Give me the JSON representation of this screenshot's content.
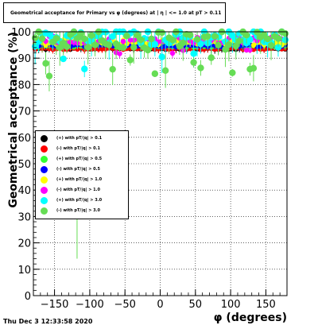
{
  "title": "Geometrical acceptance for Primary vs φ (degrees) at | η | <= 1.0 at pT > 0.11",
  "footer": "Thu Dec  3 12:33:58 2020",
  "chart_data": {
    "type": "scatter",
    "xlabel": "φ (degrees)",
    "ylabel": "Geometrical acceptance (%)",
    "xlim": [
      -180,
      180
    ],
    "ylim": [
      0,
      100
    ],
    "xticks": [
      -150,
      -100,
      -50,
      0,
      50,
      100,
      150
    ],
    "yticks": [
      0,
      10,
      20,
      30,
      40,
      50,
      60,
      70,
      80,
      90,
      100
    ],
    "grid": true,
    "legend_position": "left-middle",
    "series": [
      {
        "name": "(+) with pT/|q| > 0.1",
        "color": "#000000",
        "baseline": 93.5,
        "spread": 0.6
      },
      {
        "name": "(-) with pT/|q| > 0.1",
        "color": "#ff0000",
        "baseline": 93.5,
        "spread": 0.8
      },
      {
        "name": "(+) with pT/|q| > 0.5",
        "color": "#33ff33",
        "baseline": 94.5,
        "spread": 1.2
      },
      {
        "name": "(-) with pT/|q| > 0.5",
        "color": "#0000ff",
        "baseline": 94.5,
        "spread": 1.0
      },
      {
        "name": "(+) with pT/|q| > 1.0",
        "color": "#ffff00",
        "baseline": 95.5,
        "spread": 2.0
      },
      {
        "name": "(-) with pT/|q| > 1.0",
        "color": "#ff00ff",
        "baseline": 96.5,
        "spread": 3.0
      },
      {
        "name": "(+) with pT/|q| > 3.0",
        "color": "#00ffff",
        "baseline": 97.0,
        "spread": 6.0
      },
      {
        "name": "(-) with pT/|q| > 3.0",
        "color": "#66dd55",
        "baseline": 96.0,
        "spread": 7.0
      }
    ]
  }
}
